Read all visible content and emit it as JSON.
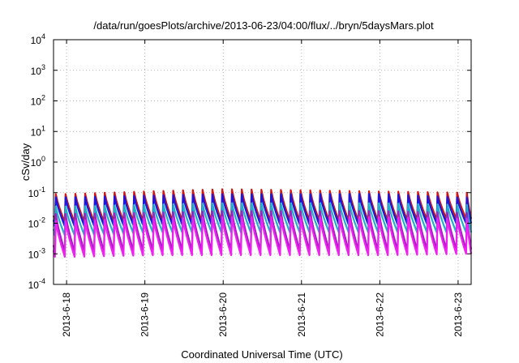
{
  "chart_data": {
    "type": "line",
    "title": "/data/run/goesPlots/archive/2013-06-23/04:00/flux/../bryn/5daysMars.plot",
    "xlabel": "Coordinated Universal Time (UTC)",
    "ylabel": "cSv/day",
    "y_scale": "log",
    "ylim": [
      0.0001,
      10000
    ],
    "xlim": [
      "2013-06-17T20:00",
      "2013-06-23T04:00"
    ],
    "grid": true,
    "x_ticks": [
      {
        "value": "2013-06-18T00:00",
        "label": "2013-6-18"
      },
      {
        "value": "2013-06-19T00:00",
        "label": "2013-6-19"
      },
      {
        "value": "2013-06-20T00:00",
        "label": "2013-6-20"
      },
      {
        "value": "2013-06-21T00:00",
        "label": "2013-6-21"
      },
      {
        "value": "2013-06-22T00:00",
        "label": "2013-6-22"
      },
      {
        "value": "2013-06-23T00:00",
        "label": "2013-6-23"
      }
    ],
    "y_ticks": [
      {
        "base": "10",
        "exp": "4"
      },
      {
        "base": "10",
        "exp": "3"
      },
      {
        "base": "10",
        "exp": "2"
      },
      {
        "base": "10",
        "exp": "1"
      },
      {
        "base": "10",
        "exp": "0"
      },
      {
        "base": "10",
        "exp": "-1"
      },
      {
        "base": "10",
        "exp": "-2"
      },
      {
        "base": "10",
        "exp": "-3"
      },
      {
        "base": "10",
        "exp": "-4"
      }
    ],
    "series": [
      {
        "color": "#d01818",
        "peaks": [
          0.09,
          0.11,
          0.13,
          0.12,
          0.11,
          0.1
        ],
        "troughs": [
          0.011,
          0.012,
          0.012,
          0.012,
          0.012,
          0.014
        ]
      },
      {
        "color": "#1818e0",
        "peaks": [
          0.07,
          0.08,
          0.09,
          0.09,
          0.09,
          0.07
        ],
        "troughs": [
          0.008,
          0.009,
          0.009,
          0.009,
          0.009,
          0.01
        ]
      },
      {
        "color": "#20b0c8",
        "peaks": [
          0.035,
          0.04,
          0.045,
          0.045,
          0.045,
          0.04
        ],
        "troughs": [
          0.004,
          0.005,
          0.005,
          0.005,
          0.005,
          0.005
        ]
      },
      {
        "color": "#a020c0",
        "peaks": [
          0.02,
          0.022,
          0.025,
          0.025,
          0.025,
          0.022
        ],
        "troughs": [
          0.0012,
          0.0013,
          0.0013,
          0.0013,
          0.0013,
          0.0014
        ]
      },
      {
        "color": "#f020f0",
        "peaks": [
          0.012,
          0.014,
          0.016,
          0.016,
          0.016,
          0.014
        ],
        "troughs": [
          0.0008,
          0.0009,
          0.0009,
          0.0009,
          0.0009,
          0.001
        ]
      }
    ],
    "cycles_per_day": 8
  }
}
